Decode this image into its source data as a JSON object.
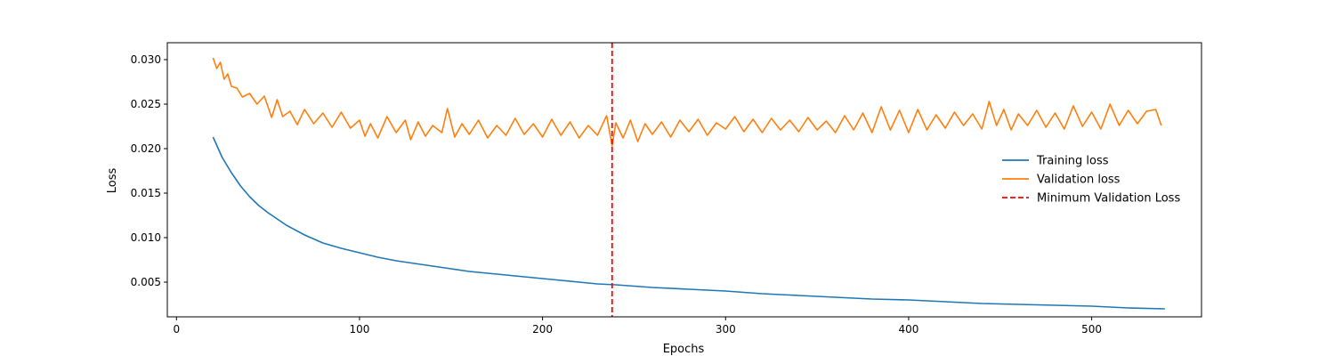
{
  "chart_data": {
    "type": "line",
    "title": "",
    "xlabel": "Epochs",
    "ylabel": "Loss",
    "xlim": [
      -5,
      560
    ],
    "ylim": [
      0.0011,
      0.0319
    ],
    "xticks": [
      0,
      100,
      200,
      300,
      400,
      500
    ],
    "xtick_labels": [
      "0",
      "100",
      "200",
      "300",
      "400",
      "500"
    ],
    "yticks": [
      0.005,
      0.01,
      0.015,
      0.02,
      0.025,
      0.03
    ],
    "ytick_labels": [
      "0.005",
      "0.010",
      "0.015",
      "0.020",
      "0.025",
      "0.030"
    ],
    "grid": false,
    "legend_position": "center-right",
    "series": [
      {
        "name": "Training loss",
        "color": "#1f77b4",
        "x": [
          20,
          25,
          30,
          35,
          40,
          45,
          50,
          55,
          60,
          70,
          80,
          90,
          100,
          110,
          120,
          130,
          140,
          150,
          160,
          170,
          180,
          190,
          200,
          210,
          220,
          230,
          240,
          260,
          280,
          300,
          320,
          340,
          360,
          380,
          400,
          420,
          440,
          460,
          480,
          500,
          520,
          540
        ],
        "y": [
          0.0213,
          0.019,
          0.0173,
          0.0158,
          0.0146,
          0.0136,
          0.0128,
          0.0121,
          0.0114,
          0.0103,
          0.0094,
          0.0088,
          0.0083,
          0.0078,
          0.0074,
          0.0071,
          0.0068,
          0.0065,
          0.0062,
          0.006,
          0.0058,
          0.0056,
          0.0054,
          0.0052,
          0.005,
          0.0048,
          0.0047,
          0.0044,
          0.0042,
          0.004,
          0.0037,
          0.0035,
          0.0033,
          0.0031,
          0.003,
          0.0028,
          0.0026,
          0.0025,
          0.0024,
          0.0023,
          0.0021,
          0.002
        ]
      },
      {
        "name": "Validation loss",
        "color": "#ff7f0e",
        "x": [
          20,
          22,
          24,
          26,
          28,
          30,
          33,
          36,
          40,
          44,
          48,
          52,
          55,
          58,
          62,
          66,
          70,
          75,
          80,
          85,
          90,
          95,
          100,
          103,
          106,
          110,
          115,
          120,
          125,
          128,
          132,
          136,
          140,
          145,
          148,
          152,
          156,
          160,
          165,
          170,
          175,
          180,
          185,
          190,
          195,
          200,
          205,
          210,
          215,
          220,
          225,
          230,
          235,
          238,
          240,
          244,
          248,
          252,
          256,
          260,
          265,
          270,
          275,
          280,
          285,
          290,
          295,
          300,
          305,
          310,
          315,
          320,
          325,
          330,
          335,
          340,
          345,
          350,
          355,
          360,
          365,
          370,
          375,
          380,
          385,
          390,
          395,
          400,
          405,
          410,
          415,
          420,
          425,
          430,
          435,
          440,
          444,
          448,
          452,
          456,
          460,
          465,
          470,
          475,
          480,
          485,
          490,
          495,
          500,
          505,
          510,
          515,
          520,
          525,
          530,
          535,
          538
        ],
        "y": [
          0.0302,
          0.029,
          0.0297,
          0.0278,
          0.0284,
          0.027,
          0.0268,
          0.0258,
          0.0262,
          0.025,
          0.0259,
          0.0235,
          0.0255,
          0.0236,
          0.0242,
          0.0227,
          0.0244,
          0.0228,
          0.024,
          0.0224,
          0.0241,
          0.0223,
          0.0232,
          0.0214,
          0.0228,
          0.0212,
          0.0236,
          0.0218,
          0.0232,
          0.021,
          0.023,
          0.0214,
          0.0226,
          0.0218,
          0.0245,
          0.0213,
          0.0228,
          0.0216,
          0.0232,
          0.0212,
          0.0226,
          0.0215,
          0.0234,
          0.0216,
          0.0228,
          0.0213,
          0.0233,
          0.0215,
          0.023,
          0.0212,
          0.0226,
          0.0215,
          0.0237,
          0.0203,
          0.0229,
          0.0212,
          0.0232,
          0.0208,
          0.0228,
          0.0216,
          0.023,
          0.0213,
          0.0232,
          0.0219,
          0.0233,
          0.0215,
          0.0229,
          0.0222,
          0.0236,
          0.0219,
          0.0233,
          0.0218,
          0.0234,
          0.0221,
          0.0232,
          0.0219,
          0.0235,
          0.0221,
          0.0231,
          0.0218,
          0.0237,
          0.0221,
          0.024,
          0.0218,
          0.0247,
          0.0221,
          0.0243,
          0.0218,
          0.0244,
          0.0221,
          0.0238,
          0.0223,
          0.0241,
          0.0226,
          0.0239,
          0.0222,
          0.0253,
          0.0226,
          0.0244,
          0.0221,
          0.0239,
          0.0226,
          0.0243,
          0.0224,
          0.024,
          0.0222,
          0.0248,
          0.0225,
          0.0241,
          0.0222,
          0.025,
          0.0226,
          0.0243,
          0.0228,
          0.0242,
          0.0244,
          0.0226
        ]
      }
    ],
    "vlines": [
      {
        "name": "Minimum Validation Loss",
        "x": 238,
        "color": "#ff0000",
        "style": "dashed"
      }
    ]
  }
}
